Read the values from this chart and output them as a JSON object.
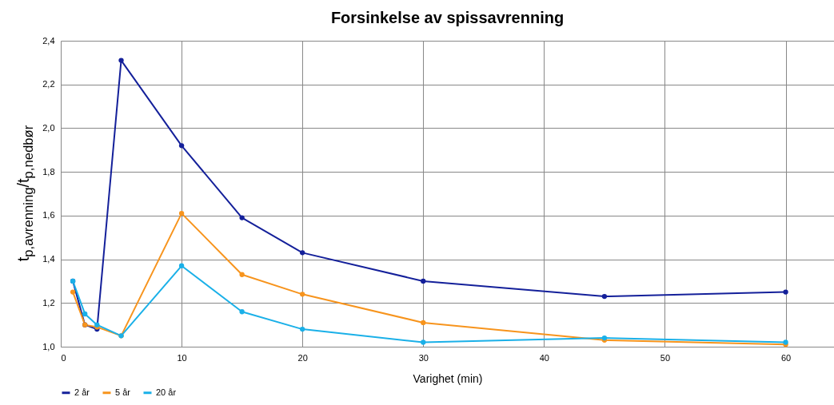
{
  "chart_data": {
    "type": "line",
    "title": "Forsinkelse av spissavrenning",
    "xlabel": "Varighet (min)",
    "ylabel": "t$_{p,avrenning}$/t$_{p,nedbør}$",
    "xlim": [
      0,
      64
    ],
    "xticks": [
      0,
      10,
      20,
      30,
      40,
      50,
      60
    ],
    "ylim": [
      1.0,
      2.4
    ],
    "yticks": [
      {
        "value": 1.0,
        "label": "1,0"
      },
      {
        "value": 1.2,
        "label": "1,2"
      },
      {
        "value": 1.4,
        "label": "1,4"
      },
      {
        "value": 1.6,
        "label": "1,6"
      },
      {
        "value": 1.8,
        "label": "1,8"
      },
      {
        "value": 2.0,
        "label": "2,0"
      },
      {
        "value": 2.2,
        "label": "2,2"
      },
      {
        "value": 2.4,
        "label": "2,4"
      }
    ],
    "x": [
      1,
      2,
      3,
      5,
      10,
      15,
      20,
      30,
      45,
      60
    ],
    "series": [
      {
        "name": "2 år",
        "color": "#14209a",
        "values": [
          1.3,
          1.1,
          1.08,
          2.31,
          1.92,
          1.59,
          1.43,
          1.3,
          1.23,
          1.25
        ]
      },
      {
        "name": "5 år",
        "color": "#f7941d",
        "values": [
          1.25,
          1.1,
          1.09,
          1.05,
          1.61,
          1.33,
          1.24,
          1.11,
          1.03,
          1.01
        ]
      },
      {
        "name": "20 år",
        "color": "#1ab0e8",
        "values": [
          1.3,
          1.15,
          1.1,
          1.05,
          1.37,
          1.16,
          1.08,
          1.02,
          1.04,
          1.02
        ]
      }
    ],
    "grid": true,
    "legend": "bottom",
    "marker": "circle",
    "line_style": "solid"
  }
}
